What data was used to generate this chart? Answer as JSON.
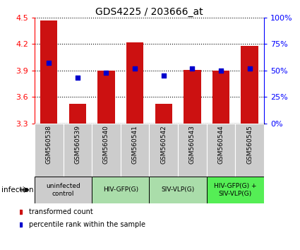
{
  "title": "GDS4225 / 203666_at",
  "samples": [
    "GSM560538",
    "GSM560539",
    "GSM560540",
    "GSM560541",
    "GSM560542",
    "GSM560543",
    "GSM560544",
    "GSM560545"
  ],
  "bar_values": [
    4.47,
    3.52,
    3.9,
    4.22,
    3.52,
    3.91,
    3.9,
    4.18
  ],
  "percentile_values": [
    57,
    43,
    48,
    52,
    45,
    52,
    50,
    52
  ],
  "ylim": [
    3.3,
    4.5
  ],
  "yticks": [
    3.3,
    3.6,
    3.9,
    4.2,
    4.5
  ],
  "right_yticks": [
    0,
    25,
    50,
    75,
    100
  ],
  "right_yticklabels": [
    "0%",
    "25%",
    "50%",
    "75%",
    "100%"
  ],
  "bar_color": "#cc1111",
  "dot_color": "#0000cc",
  "bar_width": 0.6,
  "groups": [
    {
      "label": "uninfected\ncontrol",
      "start": 0,
      "end": 1,
      "color": "#cccccc"
    },
    {
      "label": "HIV-GFP(G)",
      "start": 2,
      "end": 3,
      "color": "#aaddaa"
    },
    {
      "label": "SIV-VLP(G)",
      "start": 4,
      "end": 5,
      "color": "#aaddaa"
    },
    {
      "label": "HIV-GFP(G) +\nSIV-VLP(G)",
      "start": 6,
      "end": 7,
      "color": "#55ee55"
    }
  ],
  "infection_label": "infection",
  "legend_red_label": "transformed count",
  "legend_blue_label": "percentile rank within the sample",
  "sample_bg_color": "#cccccc",
  "plot_bg_color": "#ffffff",
  "tick_label_fontsize": 6.5,
  "title_fontsize": 10
}
